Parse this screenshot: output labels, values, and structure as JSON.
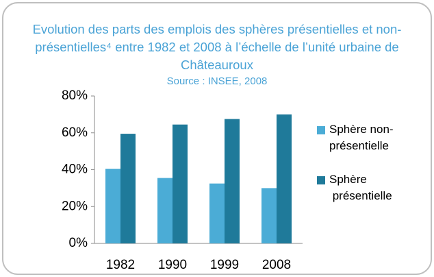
{
  "chart_data": {
    "type": "bar",
    "title": "Evolution des parts des emplois des sphères présentielles et non-présentielles⁴ entre 1982 et 2008 à l’échelle de l’unité urbaine de Châteauroux",
    "subtitle": "Source : INSEE, 2008",
    "categories": [
      "1982",
      "1990",
      "1999",
      "2008"
    ],
    "series": [
      {
        "name": "Sphère non-présentielle",
        "color": "#4bacd6",
        "values": [
          40.5,
          35.5,
          32.5,
          30
        ]
      },
      {
        "name": "Sphère présentielle",
        "color": "#1f7a9a",
        "values": [
          59.5,
          64.5,
          67.5,
          70
        ]
      }
    ],
    "ylim": [
      0,
      80
    ],
    "yticks": [
      {
        "value": 0,
        "label": "0%"
      },
      {
        "value": 20,
        "label": "20%"
      },
      {
        "value": 40,
        "label": "40%"
      },
      {
        "value": 60,
        "label": "60%"
      },
      {
        "value": 80,
        "label": "80%"
      }
    ],
    "legend": "right"
  }
}
